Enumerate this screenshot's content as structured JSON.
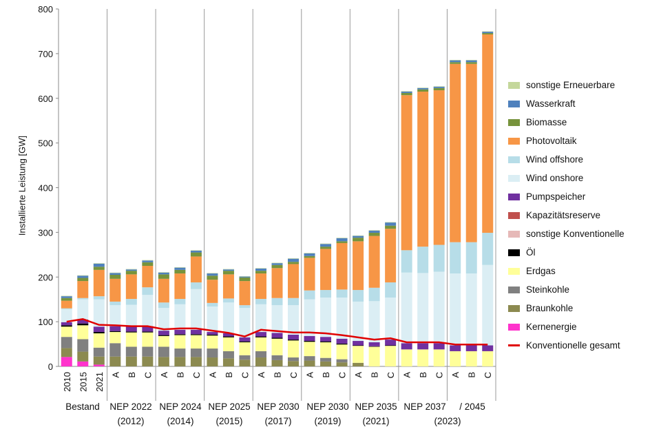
{
  "chart_data": {
    "type": "bar",
    "stacked": true,
    "ylabel": "Installierte Leistung [GW]",
    "ylim": [
      0,
      800
    ],
    "yticks": [
      "0",
      "100",
      "200",
      "300",
      "400",
      "500",
      "600",
      "700",
      "800"
    ],
    "grid": false,
    "legend_position": "right",
    "categories": [
      "2010",
      "2015",
      "2021",
      "A",
      "B",
      "C",
      "A",
      "B",
      "C",
      "A",
      "B",
      "C",
      "A",
      "B",
      "C",
      "A",
      "B",
      "C",
      "A",
      "B",
      "C",
      "A",
      "B",
      "C",
      "A",
      "B",
      "C"
    ],
    "groups": [
      {
        "line1": "Bestand",
        "line2": ""
      },
      {
        "line1": "NEP 2022",
        "line2": "(2012)"
      },
      {
        "line1": "NEP 2024",
        "line2": "(2014)"
      },
      {
        "line1": "NEP 2025",
        "line2": "(2015)"
      },
      {
        "line1": "NEP 2030",
        "line2": "(2017)"
      },
      {
        "line1": "NEP 2030",
        "line2": "(2019)"
      },
      {
        "line1": "NEP 2035",
        "line2": "(2021)"
      },
      {
        "line1": "NEP 2037",
        "line2": "(2023)"
      },
      {
        "line1": "/ 2045",
        "line2": ""
      }
    ],
    "series": [
      {
        "name": "Kernenergie",
        "color": "#ff33cc",
        "values": [
          21,
          11,
          4,
          0,
          0,
          0,
          0,
          0,
          0,
          0,
          0,
          0,
          0,
          0,
          0,
          0,
          0,
          0,
          0,
          0,
          0,
          0,
          0,
          0,
          0,
          0,
          0
        ]
      },
      {
        "name": "Braunkohle",
        "color": "#8c8a50",
        "values": [
          20,
          22,
          18,
          22,
          22,
          22,
          21,
          21,
          21,
          20,
          18,
          15,
          20,
          14,
          12,
          13,
          11,
          9,
          8,
          0,
          0,
          0,
          0,
          0,
          0,
          0,
          0
        ]
      },
      {
        "name": "Steinkohle",
        "color": "#808080",
        "values": [
          25,
          28,
          20,
          30,
          22,
          22,
          23,
          19,
          19,
          20,
          16,
          10,
          14,
          11,
          8,
          10,
          8,
          7,
          0,
          0,
          0,
          0,
          0,
          0,
          0,
          0,
          0
        ]
      },
      {
        "name": "Erdgas",
        "color": "#ffff99",
        "values": [
          23,
          31,
          32,
          25,
          32,
          32,
          24,
          30,
          30,
          29,
          31,
          29,
          31,
          37,
          38,
          32,
          35,
          33,
          38,
          44,
          46,
          38,
          38,
          38,
          34,
          34,
          34
        ]
      },
      {
        "name": "Öl",
        "color": "#000000",
        "values": [
          3,
          4,
          3,
          2,
          2,
          2,
          2,
          2,
          2,
          2,
          2,
          2,
          2,
          2,
          2,
          2,
          2,
          2,
          1,
          1,
          1,
          0,
          0,
          0,
          0,
          0,
          0
        ]
      },
      {
        "name": "sonstige Konventionelle",
        "color": "#e6b9b8",
        "values": [
          0,
          0,
          0,
          0,
          0,
          0,
          0,
          0,
          0,
          0,
          0,
          0,
          0,
          0,
          0,
          0,
          0,
          0,
          0,
          0,
          0,
          0,
          0,
          0,
          0,
          0,
          0
        ]
      },
      {
        "name": "Kapazitätsreserve",
        "color": "#c0504d",
        "values": [
          0,
          0,
          0,
          0,
          0,
          0,
          0,
          0,
          0,
          0,
          0,
          0,
          0,
          0,
          0,
          0,
          0,
          0,
          0,
          0,
          0,
          0,
          0,
          0,
          0,
          0,
          0
        ]
      },
      {
        "name": "Pumpspeicher",
        "color": "#7030a0",
        "values": [
          7,
          9,
          12,
          11,
          12,
          12,
          10,
          10,
          10,
          6,
          7,
          9,
          10,
          11,
          11,
          11,
          10,
          11,
          10,
          9,
          13,
          14,
          14,
          14,
          13,
          13,
          13
        ]
      },
      {
        "name": "Wind onshore",
        "color": "#dbeef4",
        "values": [
          29,
          45,
          61,
          47,
          48,
          70,
          51,
          57,
          91,
          57,
          69,
          66,
          62,
          62,
          66,
          82,
          88,
          92,
          88,
          92,
          94,
          158,
          157,
          160,
          161,
          161,
          180
        ]
      },
      {
        "name": "Wind offshore",
        "color": "#b7dde8",
        "values": [
          2,
          3,
          7,
          8,
          13,
          17,
          12,
          12,
          15,
          8,
          9,
          6,
          12,
          16,
          16,
          20,
          17,
          18,
          26,
          30,
          34,
          50,
          59,
          60,
          70,
          70,
          72
        ]
      },
      {
        "name": "Photovoltaik",
        "color": "#f79646",
        "values": [
          17,
          38,
          59,
          51,
          55,
          48,
          53,
          57,
          58,
          52,
          54,
          54,
          57,
          67,
          76,
          73,
          92,
          104,
          109,
          116,
          120,
          347,
          347,
          346,
          399,
          399,
          444
        ]
      },
      {
        "name": "Biomasse",
        "color": "#77933c",
        "values": [
          6,
          7,
          7,
          9,
          8,
          8,
          10,
          8,
          9,
          9,
          8,
          8,
          6,
          7,
          5,
          4,
          5,
          4,
          8,
          7,
          7,
          5,
          5,
          5,
          4,
          4,
          3
        ]
      },
      {
        "name": "Wasserkraft",
        "color": "#4f81bd",
        "values": [
          4,
          5,
          7,
          4,
          3,
          4,
          4,
          5,
          4,
          5,
          3,
          2,
          5,
          4,
          7,
          6,
          6,
          7,
          4,
          5,
          7,
          3,
          3,
          3,
          4,
          4,
          3
        ]
      },
      {
        "name": "sonstige Erneuerbare",
        "color": "#c4d79b",
        "values": [
          1,
          1,
          1,
          1,
          1,
          1,
          1,
          1,
          1,
          1,
          1,
          1,
          1,
          1,
          1,
          1,
          1,
          1,
          1,
          1,
          1,
          1,
          1,
          1,
          1,
          1,
          1
        ]
      }
    ],
    "line": {
      "name": "Konventionelle gesamt",
      "color": "#e00000",
      "values": [
        100,
        106,
        93,
        92,
        90,
        90,
        83,
        85,
        85,
        80,
        75,
        67,
        82,
        79,
        76,
        76,
        74,
        70,
        65,
        60,
        63,
        54,
        54,
        54,
        49,
        49,
        49
      ]
    }
  }
}
